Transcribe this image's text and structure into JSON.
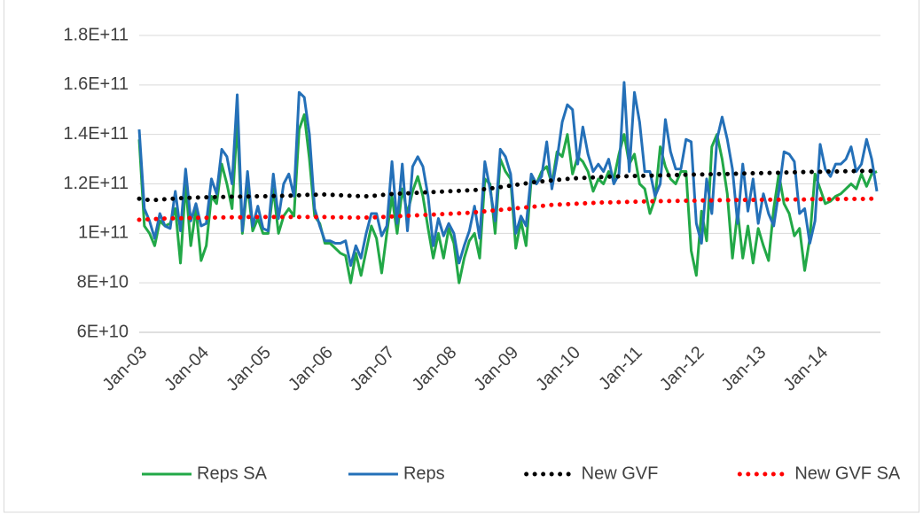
{
  "chart_data": {
    "type": "line",
    "categories": [
      "Jan-03",
      null,
      null,
      null,
      null,
      null,
      null,
      null,
      null,
      null,
      null,
      null,
      "Jan-04",
      null,
      null,
      null,
      null,
      null,
      null,
      null,
      null,
      null,
      null,
      null,
      "Jan-05",
      null,
      null,
      null,
      null,
      null,
      null,
      null,
      null,
      null,
      null,
      null,
      "Jan-06",
      null,
      null,
      null,
      null,
      null,
      null,
      null,
      null,
      null,
      null,
      null,
      "Jan-07",
      null,
      null,
      null,
      null,
      null,
      null,
      null,
      null,
      null,
      null,
      null,
      "Jan-08",
      null,
      null,
      null,
      null,
      null,
      null,
      null,
      null,
      null,
      null,
      null,
      "Jan-09",
      null,
      null,
      null,
      null,
      null,
      null,
      null,
      null,
      null,
      null,
      null,
      "Jan-10",
      null,
      null,
      null,
      null,
      null,
      null,
      null,
      null,
      null,
      null,
      null,
      "Jan-11",
      null,
      null,
      null,
      null,
      null,
      null,
      null,
      null,
      null,
      null,
      null,
      "Jan-12",
      null,
      null,
      null,
      null,
      null,
      null,
      null,
      null,
      null,
      null,
      null,
      "Jan-13",
      null,
      null,
      null,
      null,
      null,
      null,
      null,
      null,
      null,
      null,
      null,
      "Jan-14",
      null,
      null,
      null,
      null,
      null,
      null,
      null,
      null,
      null,
      null,
      null
    ],
    "series": [
      {
        "name": "Reps SA",
        "color": "#22a847",
        "style": "solid",
        "values": [
          138000000000.0,
          103000000000.0,
          100000000000.0,
          95000000000.0,
          105000000000.0,
          103000000000.0,
          104000000000.0,
          110000000000.0,
          88000000000.0,
          120000000000.0,
          95000000000.0,
          110000000000.0,
          89000000000.0,
          95000000000.0,
          115000000000.0,
          112000000000.0,
          128000000000.0,
          120000000000.0,
          110000000000.0,
          145000000000.0,
          100000000000.0,
          120000000000.0,
          101000000000.0,
          106000000000.0,
          100000000000.0,
          100000000000.0,
          118000000000.0,
          100000000000.0,
          107000000000.0,
          110000000000.0,
          107000000000.0,
          142000000000.0,
          148000000000.0,
          130000000000.0,
          107000000000.0,
          104000000000.0,
          96000000000.0,
          96000000000.0,
          94000000000.0,
          92000000000.0,
          91000000000.0,
          80000000000.0,
          92000000000.0,
          83000000000.0,
          93000000000.0,
          103000000000.0,
          98000000000.0,
          84000000000.0,
          100000000000.0,
          115000000000.0,
          100000000000.0,
          118000000000.0,
          108000000000.0,
          117000000000.0,
          123000000000.0,
          115000000000.0,
          102000000000.0,
          90000000000.0,
          100000000000.0,
          90000000000.0,
          102000000000.0,
          96000000000.0,
          80000000000.0,
          90000000000.0,
          97000000000.0,
          100000000000.0,
          90000000000.0,
          122000000000.0,
          120000000000.0,
          100000000000.0,
          130000000000.0,
          125000000000.0,
          122000000000.0,
          94000000000.0,
          105000000000.0,
          95000000000.0,
          122000000000.0,
          120000000000.0,
          125000000000.0,
          127000000000.0,
          120000000000.0,
          133000000000.0,
          131000000000.0,
          140000000000.0,
          124000000000.0,
          131000000000.0,
          129000000000.0,
          125000000000.0,
          117000000000.0,
          122000000000.0,
          120000000000.0,
          125000000000.0,
          122000000000.0,
          132000000000.0,
          140000000000.0,
          128000000000.0,
          132000000000.0,
          120000000000.0,
          118000000000.0,
          108000000000.0,
          114000000000.0,
          135000000000.0,
          127000000000.0,
          122000000000.0,
          120000000000.0,
          125000000000.0,
          125000000000.0,
          93000000000.0,
          83000000000.0,
          109000000000.0,
          97000000000.0,
          135000000000.0,
          140000000000.0,
          130000000000.0,
          116000000000.0,
          90000000000.0,
          109000000000.0,
          90000000000.0,
          103000000000.0,
          88000000000.0,
          102000000000.0,
          95000000000.0,
          89000000000.0,
          110000000000.0,
          124000000000.0,
          112000000000.0,
          108000000000.0,
          99000000000.0,
          102000000000.0,
          85000000000.0,
          98000000000.0,
          124000000000.0,
          118000000000.0,
          112000000000.0,
          113000000000.0,
          115000000000.0,
          116000000000.0,
          118000000000.0,
          120000000000.0,
          118000000000.0,
          124000000000.0,
          119000000000.0,
          124000000000.0,
          125000000000.0
        ]
      },
      {
        "name": "Reps",
        "color": "#2470b8",
        "style": "solid",
        "values": [
          142000000000.0,
          110000000000.0,
          105000000000.0,
          98000000000.0,
          108000000000.0,
          103000000000.0,
          102000000000.0,
          117000000000.0,
          101000000000.0,
          126000000000.0,
          105000000000.0,
          112000000000.0,
          103000000000.0,
          104000000000.0,
          122000000000.0,
          116000000000.0,
          134000000000.0,
          131000000000.0,
          120000000000.0,
          156000000000.0,
          101000000000.0,
          125000000000.0,
          103000000000.0,
          111000000000.0,
          102000000000.0,
          101000000000.0,
          124000000000.0,
          106000000000.0,
          120000000000.0,
          124000000000.0,
          115000000000.0,
          157000000000.0,
          155000000000.0,
          140000000000.0,
          110000000000.0,
          103000000000.0,
          97000000000.0,
          97000000000.0,
          96000000000.0,
          96000000000.0,
          97000000000.0,
          87000000000.0,
          95000000000.0,
          90000000000.0,
          100000000000.0,
          108000000000.0,
          108000000000.0,
          99000000000.0,
          103000000000.0,
          129000000000.0,
          104000000000.0,
          128000000000.0,
          101000000000.0,
          127000000000.0,
          131000000000.0,
          127000000000.0,
          115000000000.0,
          95000000000.0,
          106000000000.0,
          99000000000.0,
          104000000000.0,
          100000000000.0,
          88000000000.0,
          95000000000.0,
          101000000000.0,
          111000000000.0,
          98000000000.0,
          129000000000.0,
          118000000000.0,
          105000000000.0,
          134000000000.0,
          131000000000.0,
          124000000000.0,
          100000000000.0,
          107000000000.0,
          103000000000.0,
          124000000000.0,
          120000000000.0,
          123000000000.0,
          137000000000.0,
          118000000000.0,
          130000000000.0,
          145000000000.0,
          152000000000.0,
          150000000000.0,
          128000000000.0,
          143000000000.0,
          132000000000.0,
          125000000000.0,
          128000000000.0,
          125000000000.0,
          130000000000.0,
          120000000000.0,
          124000000000.0,
          161000000000.0,
          125000000000.0,
          157000000000.0,
          145000000000.0,
          125000000000.0,
          125000000000.0,
          115000000000.0,
          120000000000.0,
          146000000000.0,
          133000000000.0,
          126000000000.0,
          126000000000.0,
          138000000000.0,
          137000000000.0,
          104000000000.0,
          96000000000.0,
          122000000000.0,
          108000000000.0,
          138000000000.0,
          147000000000.0,
          138000000000.0,
          126000000000.0,
          104000000000.0,
          128000000000.0,
          109000000000.0,
          122000000000.0,
          104000000000.0,
          116000000000.0,
          108000000000.0,
          103000000000.0,
          117000000000.0,
          133000000000.0,
          132000000000.0,
          129000000000.0,
          108000000000.0,
          110000000000.0,
          96000000000.0,
          105000000000.0,
          136000000000.0,
          126000000000.0,
          123000000000.0,
          128000000000.0,
          128000000000.0,
          130000000000.0,
          135000000000.0,
          125000000000.0,
          128000000000.0,
          138000000000.0,
          130000000000.0,
          117000000000.0
        ]
      },
      {
        "name": "New GVF",
        "color": "#000000",
        "style": "dotted",
        "values": [
          114000000000.0,
          113600000000.0,
          113500000000.0,
          113500000000.0,
          113600000000.0,
          113800000000.0,
          114000000000.0,
          114000000000.0,
          114200000000.0,
          114300000000.0,
          114400000000.0,
          114500000000.0,
          114500000000.0,
          114600000000.0,
          114600000000.0,
          114700000000.0,
          114700000000.0,
          114800000000.0,
          114800000000.0,
          114800000000.0,
          114900000000.0,
          114900000000.0,
          115000000000.0,
          115000000000.0,
          115000000000.0,
          115000000000.0,
          115100000000.0,
          115100000000.0,
          115200000000.0,
          115200000000.0,
          115300000000.0,
          115400000000.0,
          115500000000.0,
          115600000000.0,
          115600000000.0,
          115700000000.0,
          115700000000.0,
          115600000000.0,
          115500000000.0,
          115400000000.0,
          115300000000.0,
          115200000000.0,
          115100000000.0,
          115000000000.0,
          115000000000.0,
          115100000000.0,
          115300000000.0,
          115500000000.0,
          115700000000.0,
          115900000000.0,
          116000000000.0,
          116100000000.0,
          116200000000.0,
          116300000000.0,
          116400000000.0,
          116500000000.0,
          116600000000.0,
          116700000000.0,
          116800000000.0,
          116900000000.0,
          117000000000.0,
          117100000000.0,
          117200000000.0,
          117300000000.0,
          117400000000.0,
          117500000000.0,
          117700000000.0,
          117900000000.0,
          118100000000.0,
          118400000000.0,
          118700000000.0,
          119000000000.0,
          119300000000.0,
          119600000000.0,
          119900000000.0,
          120200000000.0,
          120500000000.0,
          120800000000.0,
          121000000000.0,
          121200000000.0,
          121400000000.0,
          121600000000.0,
          121800000000.0,
          122000000000.0,
          122200000000.0,
          122300000000.0,
          122400000000.0,
          122500000000.0,
          122600000000.0,
          122700000000.0,
          122800000000.0,
          122900000000.0,
          123000000000.0,
          123000000000.0,
          123100000000.0,
          123100000000.0,
          123200000000.0,
          123200000000.0,
          123300000000.0,
          123300000000.0,
          123400000000.0,
          123400000000.0,
          123500000000.0,
          123500000000.0,
          123600000000.0,
          123600000000.0,
          123700000000.0,
          123700000000.0,
          123800000000.0,
          123800000000.0,
          123900000000.0,
          123900000000.0,
          124000000000.0,
          124000000000.0,
          124000000000.0,
          124100000000.0,
          124100000000.0,
          124200000000.0,
          124200000000.0,
          124300000000.0,
          124300000000.0,
          124400000000.0,
          124400000000.0,
          124500000000.0,
          124500000000.0,
          124600000000.0,
          124600000000.0,
          124700000000.0,
          124700000000.0,
          124800000000.0,
          124800000000.0,
          124900000000.0,
          124900000000.0,
          125000000000.0,
          125000000000.0,
          125000000000.0,
          125100000000.0,
          125100000000.0,
          125100000000.0,
          125200000000.0,
          125200000000.0,
          125200000000.0,
          125200000000.0,
          125300000000.0
        ]
      },
      {
        "name": "New GVF SA",
        "color": "#ff0000",
        "style": "dotted",
        "values": [
          105500000000.0,
          105600000000.0,
          105700000000.0,
          105800000000.0,
          105900000000.0,
          106000000000.0,
          106000000000.0,
          106100000000.0,
          106100000000.0,
          106200000000.0,
          106200000000.0,
          106300000000.0,
          106300000000.0,
          106300000000.0,
          106400000000.0,
          106400000000.0,
          106400000000.0,
          106500000000.0,
          106500000000.0,
          106500000000.0,
          106500000000.0,
          106600000000.0,
          106600000000.0,
          106600000000.0,
          106600000000.0,
          106600000000.0,
          106600000000.0,
          106600000000.0,
          106600000000.0,
          106600000000.0,
          106600000000.0,
          106600000000.0,
          106600000000.0,
          106600000000.0,
          106600000000.0,
          106600000000.0,
          106600000000.0,
          106500000000.0,
          106500000000.0,
          106500000000.0,
          106400000000.0,
          106400000000.0,
          106400000000.0,
          106400000000.0,
          106400000000.0,
          106500000000.0,
          106500000000.0,
          106600000000.0,
          106700000000.0,
          106800000000.0,
          106900000000.0,
          107000000000.0,
          107100000000.0,
          107200000000.0,
          107300000000.0,
          107400000000.0,
          107500000000.0,
          107600000000.0,
          107700000000.0,
          107800000000.0,
          107900000000.0,
          108000000000.0,
          108100000000.0,
          108200000000.0,
          108300000000.0,
          108500000000.0,
          108700000000.0,
          108900000000.0,
          109100000000.0,
          109300000000.0,
          109500000000.0,
          109700000000.0,
          109900000000.0,
          110100000000.0,
          110300000000.0,
          110500000000.0,
          110700000000.0,
          110900000000.0,
          111100000000.0,
          111300000000.0,
          111500000000.0,
          111600000000.0,
          111700000000.0,
          111800000000.0,
          111900000000.0,
          112000000000.0,
          112100000000.0,
          112200000000.0,
          112300000000.0,
          112400000000.0,
          112500000000.0,
          112500000000.0,
          112600000000.0,
          112600000000.0,
          112700000000.0,
          112700000000.0,
          112800000000.0,
          112800000000.0,
          112900000000.0,
          112900000000.0,
          113000000000.0,
          113000000000.0,
          113000000000.0,
          113100000000.0,
          113100000000.0,
          113100000000.0,
          113200000000.0,
          113200000000.0,
          113200000000.0,
          113300000000.0,
          113300000000.0,
          113300000000.0,
          113400000000.0,
          113400000000.0,
          113400000000.0,
          113400000000.0,
          113500000000.0,
          113500000000.0,
          113500000000.0,
          113500000000.0,
          113500000000.0,
          113600000000.0,
          113600000000.0,
          113600000000.0,
          113600000000.0,
          113700000000.0,
          113700000000.0,
          113700000000.0,
          113700000000.0,
          113700000000.0,
          113800000000.0,
          113800000000.0,
          113800000000.0,
          113800000000.0,
          113800000000.0,
          113800000000.0,
          113900000000.0,
          113900000000.0,
          113900000000.0,
          113900000000.0,
          113900000000.0,
          113900000000.0,
          114000000000.0,
          114000000000.0
        ]
      }
    ],
    "ylim": [
      60000000000.0,
      180000000000.0
    ],
    "yticks": [
      {
        "value": 60000000000.0,
        "label": "6E+10"
      },
      {
        "value": 80000000000.0,
        "label": "8E+10"
      },
      {
        "value": 100000000000.0,
        "label": "1E+11"
      },
      {
        "value": 120000000000.0,
        "label": "1.2E+11"
      },
      {
        "value": 140000000000.0,
        "label": "1.4E+11"
      },
      {
        "value": 160000000000.0,
        "label": "1.6E+11"
      },
      {
        "value": 180000000000.0,
        "label": "1.8E+11"
      }
    ],
    "grid": true,
    "legend": "bottom"
  }
}
